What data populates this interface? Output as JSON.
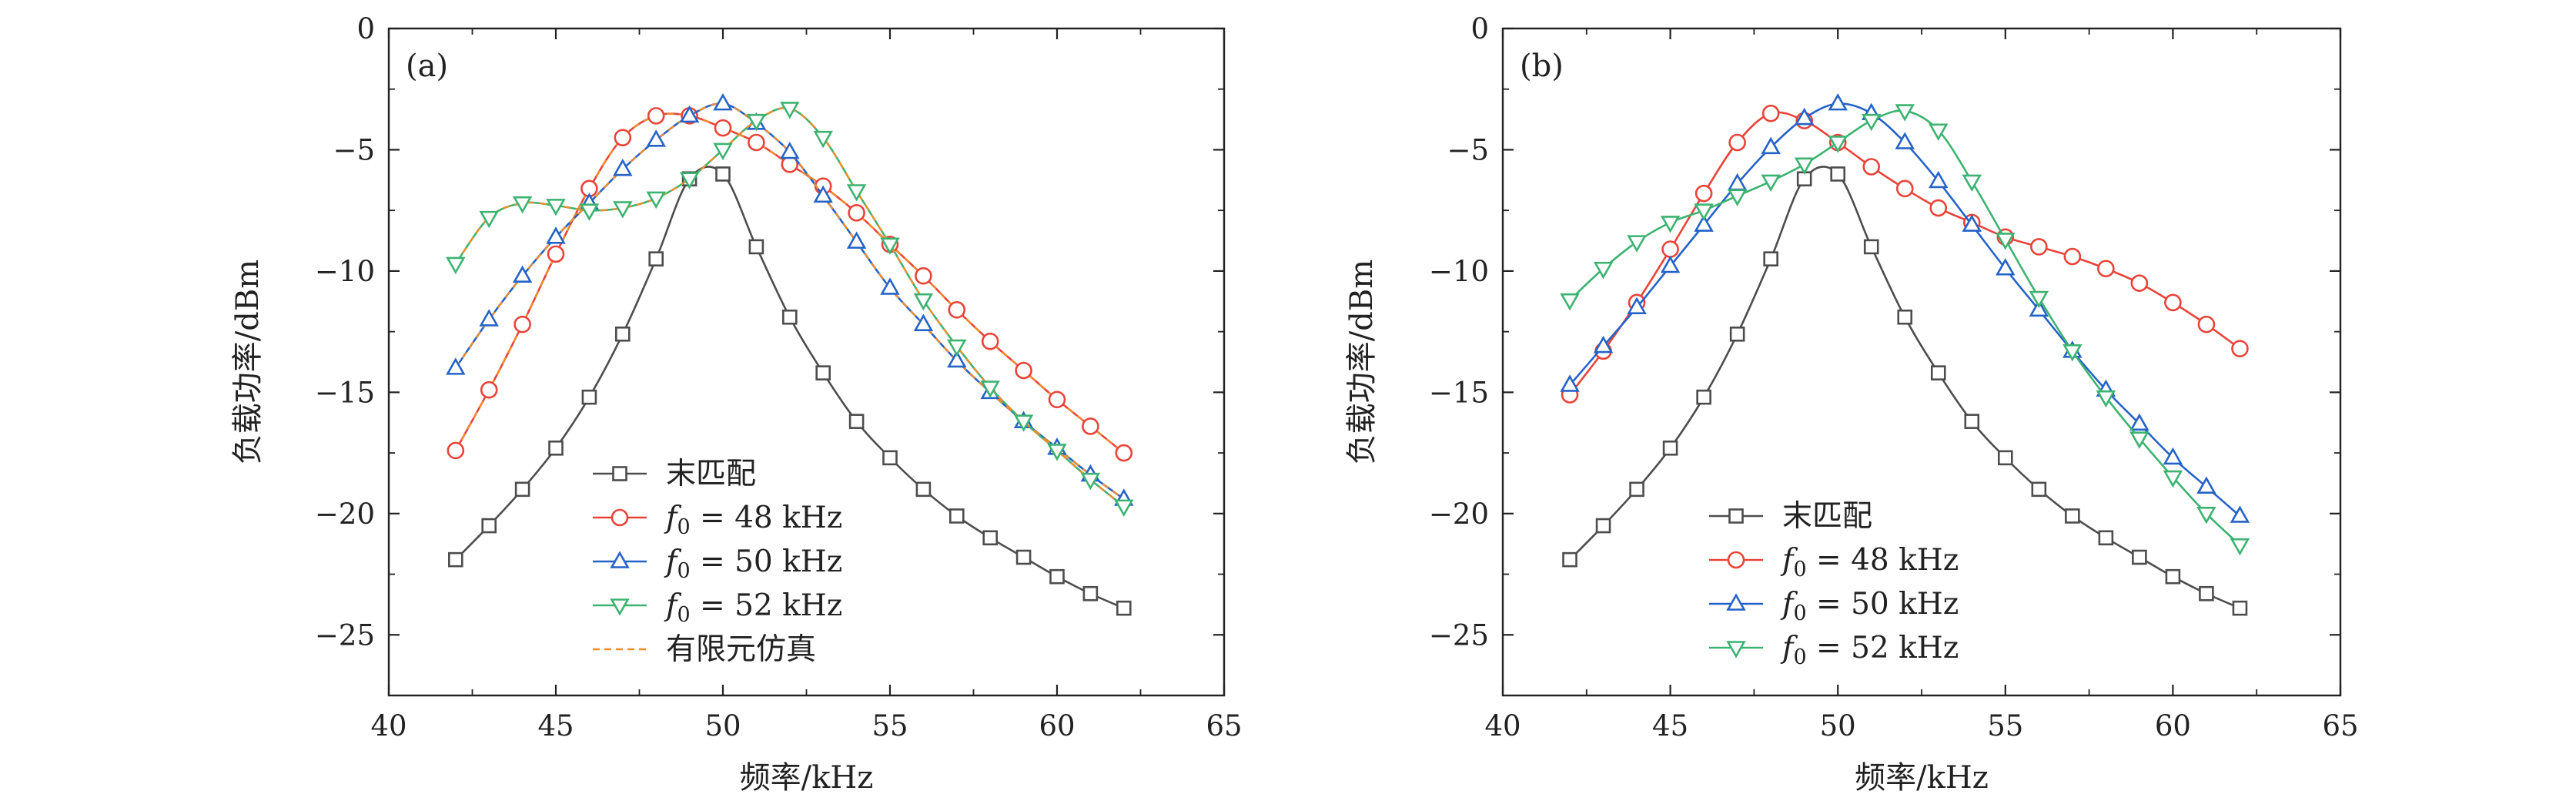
{
  "chart_data": [
    {
      "type": "line",
      "panel_label": "(a)",
      "xlabel": "频率/kHz",
      "ylabel": "负载功率/dBm",
      "xlim": [
        40,
        65
      ],
      "ylim": [
        -27.5,
        0
      ],
      "xticks": [
        40,
        45,
        50,
        55,
        60,
        65
      ],
      "yticks": [
        0,
        -5,
        -10,
        -15,
        -20,
        -25
      ],
      "xtick_labels": [
        "40",
        "45",
        "50",
        "55",
        "60",
        "65"
      ],
      "ytick_labels": [
        "0",
        "−5",
        "−10",
        "−15",
        "−20",
        "−25"
      ],
      "x": [
        42,
        43,
        44,
        45,
        46,
        47,
        48,
        49,
        50,
        51,
        52,
        53,
        54,
        55,
        56,
        57,
        58,
        59,
        60,
        61,
        62
      ],
      "series": [
        {
          "name": "末匹配",
          "color": "#4d4d4d",
          "marker": "square",
          "values": [
            -21.9,
            -20.5,
            -19.0,
            -17.3,
            -15.2,
            -12.6,
            -9.5,
            -6.2,
            -6.0,
            -9.0,
            -11.9,
            -14.2,
            -16.2,
            -17.7,
            -19.0,
            -20.1,
            -21.0,
            -21.8,
            -22.6,
            -23.3,
            -23.9
          ]
        },
        {
          "name": "f0 = 48 kHz",
          "name_prefix": "f",
          "name_sub": "0",
          "name_suffix": " = 48 kHz",
          "color": "#e8443a",
          "marker": "circle",
          "values": [
            -17.4,
            -14.9,
            -12.2,
            -9.3,
            -6.6,
            -4.5,
            -3.6,
            -3.6,
            -4.1,
            -4.7,
            -5.6,
            -6.5,
            -7.6,
            -8.9,
            -10.2,
            -11.6,
            -12.9,
            -14.1,
            -15.3,
            -16.4,
            -17.5
          ]
        },
        {
          "name": "f0 = 50 kHz",
          "name_prefix": "f",
          "name_sub": "0",
          "name_suffix": " = 50 kHz",
          "color": "#2563c7",
          "marker": "triangle-up",
          "values": [
            -14.0,
            -12.0,
            -10.2,
            -8.6,
            -7.2,
            -5.8,
            -4.6,
            -3.6,
            -3.1,
            -3.9,
            -5.1,
            -6.9,
            -8.8,
            -10.7,
            -12.2,
            -13.7,
            -15.0,
            -16.2,
            -17.3,
            -18.4,
            -19.4
          ]
        },
        {
          "name": "f0 = 52 kHz",
          "name_prefix": "f",
          "name_sub": "0",
          "name_suffix": " = 52 kHz",
          "color": "#3cb371",
          "marker": "triangle-down",
          "values": [
            -9.7,
            -7.8,
            -7.2,
            -7.3,
            -7.5,
            -7.4,
            -7.0,
            -6.2,
            -5.0,
            -3.8,
            -3.3,
            -4.5,
            -6.7,
            -8.9,
            -11.2,
            -13.1,
            -14.8,
            -16.2,
            -17.4,
            -18.6,
            -19.7
          ]
        }
      ],
      "legend": {
        "position": "lower-left",
        "extra": {
          "name": "有限元仿真",
          "color": "#f28c28",
          "style": "dashed"
        }
      }
    },
    {
      "type": "line",
      "panel_label": "(b)",
      "xlabel": "频率/kHz",
      "ylabel": "负载功率/dBm",
      "xlim": [
        40,
        65
      ],
      "ylim": [
        -27.5,
        0
      ],
      "xticks": [
        40,
        45,
        50,
        55,
        60,
        65
      ],
      "yticks": [
        0,
        -5,
        -10,
        -15,
        -20,
        -25
      ],
      "xtick_labels": [
        "40",
        "45",
        "50",
        "55",
        "60",
        "65"
      ],
      "ytick_labels": [
        "0",
        "−5",
        "−10",
        "−15",
        "−20",
        "−25"
      ],
      "x": [
        42,
        43,
        44,
        45,
        46,
        47,
        48,
        49,
        50,
        51,
        52,
        53,
        54,
        55,
        56,
        57,
        58,
        59,
        60,
        61,
        62
      ],
      "series": [
        {
          "name": "末匹配",
          "color": "#4d4d4d",
          "marker": "square",
          "values": [
            -21.9,
            -20.5,
            -19.0,
            -17.3,
            -15.2,
            -12.6,
            -9.5,
            -6.2,
            -6.0,
            -9.0,
            -11.9,
            -14.2,
            -16.2,
            -17.7,
            -19.0,
            -20.1,
            -21.0,
            -21.8,
            -22.6,
            -23.3,
            -23.9
          ]
        },
        {
          "name": "f0 = 48 kHz",
          "name_prefix": "f",
          "name_sub": "0",
          "name_suffix": " = 48 kHz",
          "color": "#e8443a",
          "marker": "circle",
          "values": [
            -15.1,
            -13.3,
            -11.3,
            -9.1,
            -6.8,
            -4.7,
            -3.5,
            -3.8,
            -4.7,
            -5.7,
            -6.6,
            -7.4,
            -8.0,
            -8.6,
            -9.0,
            -9.4,
            -9.9,
            -10.5,
            -11.3,
            -12.2,
            -13.2
          ]
        },
        {
          "name": "f0 = 50 kHz",
          "name_prefix": "f",
          "name_sub": "0",
          "name_suffix": " = 50 kHz",
          "color": "#2563c7",
          "marker": "triangle-up",
          "values": [
            -14.7,
            -13.1,
            -11.5,
            -9.8,
            -8.1,
            -6.4,
            -4.9,
            -3.7,
            -3.1,
            -3.5,
            -4.7,
            -6.3,
            -8.1,
            -9.9,
            -11.6,
            -13.3,
            -14.9,
            -16.3,
            -17.7,
            -18.9,
            -20.1
          ]
        },
        {
          "name": "f0 = 52 kHz",
          "name_prefix": "f",
          "name_sub": "0",
          "name_suffix": " = 52 kHz",
          "color": "#3cb371",
          "marker": "triangle-down",
          "values": [
            -11.2,
            -9.9,
            -8.8,
            -8.0,
            -7.5,
            -6.9,
            -6.3,
            -5.6,
            -4.7,
            -3.8,
            -3.4,
            -4.2,
            -6.3,
            -8.7,
            -11.1,
            -13.3,
            -15.2,
            -16.9,
            -18.5,
            -20.0,
            -21.3
          ]
        }
      ],
      "legend": {
        "position": "lower-left"
      }
    }
  ]
}
